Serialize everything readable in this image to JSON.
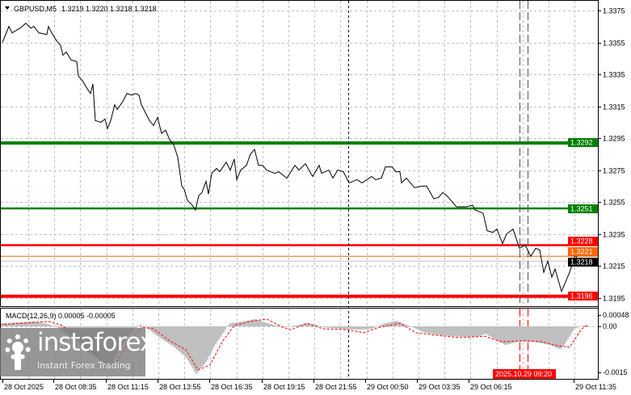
{
  "header": {
    "symbol_label": "GBPUSD,M5",
    "ohlc": "1.3219 1.3220 1.3218 1.3218"
  },
  "macd": {
    "label": "MACD(12,26,9) 0.00005 -0.00005",
    "axis_ticks": [
      "0.00048",
      "0.00",
      "-0.0015"
    ]
  },
  "colors": {
    "price_line": "#000000",
    "support_green": "#008000",
    "resistance_red": "#ff0000",
    "bid_line": "#ff6600",
    "current_price_bg": "#000000",
    "histogram": "#c0c0c0",
    "signal": "#ff0000"
  },
  "chart_data": [
    {
      "type": "line",
      "title": "GBPUSD,M5",
      "ylim": [
        1.319,
        1.3382
      ],
      "grid": true,
      "y_ticks": [
        "1.3375",
        "1.3355",
        "1.3335",
        "1.3315",
        "1.3295",
        "1.3275",
        "1.3255",
        "1.3235",
        "1.3215",
        "1.3195"
      ],
      "x_ticks": [
        "28 Oct 2025",
        "28 Oct 08:35",
        "28 Oct 11:15",
        "28 Oct 13:55",
        "28 Oct 16:35",
        "28 Oct 19:15",
        "28 Oct 21:55",
        "29 Oct 00:50",
        "29 Oct 03:35",
        "29 Oct 06:15",
        "29 Oct 11:35"
      ],
      "cursor_time_label": "2025.10.29 09:20",
      "series": [
        {
          "values": [
            1.3355,
            1.3365,
            1.3361,
            1.3364,
            1.3367,
            1.3364,
            1.3365,
            1.3361,
            1.336,
            1.3365,
            1.3361,
            1.3356,
            1.3353,
            1.3347,
            1.3349,
            1.3344,
            1.3343,
            1.3334,
            1.3331,
            1.3326,
            1.3323,
            1.3329,
            1.3306,
            1.3305,
            1.3307,
            1.3301,
            1.3306,
            1.3316,
            1.3313,
            1.3318,
            1.3323,
            1.3322,
            1.3323,
            1.3322,
            1.3316,
            1.3311,
            1.3306,
            1.3303,
            1.3308,
            1.3298,
            1.33,
            1.3294,
            1.3291,
            1.3283,
            1.3265,
            1.3263,
            1.3256,
            1.3253,
            1.325,
            1.3259,
            1.3261,
            1.3268,
            1.326,
            1.3273,
            1.3276,
            1.3274,
            1.328,
            1.3275,
            1.3282,
            1.3269,
            1.3275,
            1.3278,
            1.3285,
            1.3288,
            1.3278,
            1.3278,
            1.3275,
            1.3273,
            1.3274,
            1.327,
            1.3278,
            1.3275,
            1.3279,
            1.3271,
            1.3278,
            1.3273,
            1.3275,
            1.327,
            1.3275,
            1.3274,
            1.3267,
            1.3269,
            1.3267,
            1.3271,
            1.3269,
            1.327,
            1.3277,
            1.3277,
            1.3274,
            1.3274,
            1.3267,
            1.327,
            1.3264,
            1.3265,
            1.3265,
            1.3257,
            1.3258,
            1.3261,
            1.3259,
            1.3252,
            1.3252,
            1.3253,
            1.325,
            1.3248,
            1.3237,
            1.3236,
            1.3238,
            1.3229,
            1.3235,
            1.3238,
            1.3226,
            1.3228,
            1.3221,
            1.3226,
            1.3225,
            1.3211,
            1.3218,
            1.3208,
            1.3213,
            1.3199,
            1.3205,
            1.3211,
            1.3222,
            1.3217,
            1.3219
          ]
        }
      ],
      "levels": [
        {
          "price": "1.3292",
          "color": "#008000",
          "weight": "thick"
        },
        {
          "price": "1.3251",
          "color": "#008000",
          "weight": "medium"
        },
        {
          "price": "1.3228",
          "color": "#ff0000",
          "weight": "medium"
        },
        {
          "price": "1.3221",
          "color": "#ff6600",
          "weight": "thin"
        },
        {
          "price": "1.3218",
          "color": "#000000",
          "weight": "current"
        },
        {
          "price": "1.3196",
          "color": "#ff0000",
          "weight": "thick"
        }
      ]
    },
    {
      "type": "bar",
      "title": "MACD(12,26,9)",
      "ylim": [
        -0.0015,
        0.00048
      ],
      "series": [
        {
          "name": "histogram",
          "values": [
            0.0001,
            0.00016,
            0.0001,
            -3e-05,
            -0.00024,
            -0.00047,
            -0.00089,
            -0.00113,
            -0.00134,
            -0.00082,
            -0.00024,
            5e-05,
            -3e-05,
            -0.00024,
            -0.00042,
            -0.00068,
            -0.00103,
            -0.00155,
            -0.00113,
            -0.00061,
            -0.00024,
            0.0001,
            0.00016,
            0.00024,
            0.0001,
            -3e-05,
            3e-05,
            0.0001,
            5e-05,
            -3e-05,
            -8e-05,
            -0.00011,
            -8e-05,
            0.0001,
            0.00018,
            -3e-05,
            -0.00021,
            -0.00029,
            -0.00034,
            -0.00034,
            -0.00024,
            -0.00047,
            -0.00061,
            -0.0005,
            -0.0005,
            -0.00061,
            -0.00076,
            -0.0005,
            -8e-05,
            3e-05,
            3e-05
          ]
        },
        {
          "name": "signal",
          "values": [
            5e-05,
            0.00016,
            5e-05,
            -0.00042,
            -0.00108,
            -0.00129,
            -0.00113,
            -0.0005,
            -3e-05,
            -8e-05,
            -0.00047,
            -0.00076,
            -0.00142,
            -0.00126,
            -0.0005,
            3e-05,
            0.00016,
            0.00024,
            -3e-05,
            -0.00011,
            0.0001,
            -8e-05,
            -0.00011,
            -0.00021,
            -3e-05,
            0.0001,
            -0.00021,
            -0.00029,
            -0.00037,
            -0.00032,
            -0.0005,
            -0.00047,
            -0.0005,
            -0.00063,
            -0.00068,
            -8e-05,
            3e-05
          ]
        }
      ]
    }
  ],
  "logo": {
    "name": "instaforex",
    "tagline": "Instant Forex Trading"
  }
}
